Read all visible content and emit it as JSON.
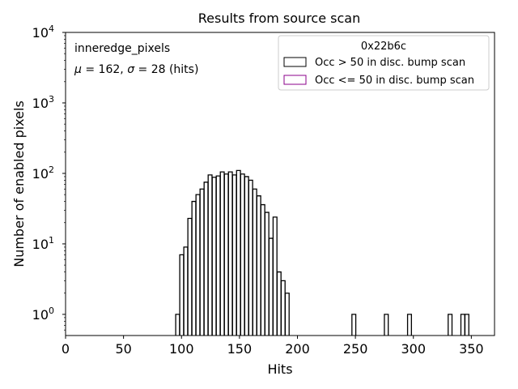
{
  "chart_data": {
    "type": "histogram",
    "title": "Results from source scan",
    "xlabel": "Hits",
    "ylabel": "Number of enabled pixels",
    "xlim": [
      0,
      370
    ],
    "ylim_exp": [
      -0.3,
      4
    ],
    "yscale": "log",
    "xticks": [
      "0",
      "50",
      "100",
      "150",
      "200",
      "250",
      "300",
      "350"
    ],
    "xtick_values": [
      0,
      50,
      100,
      150,
      200,
      250,
      300,
      350
    ],
    "ytick_mantissa": "10",
    "ytick_exponents": [
      "0",
      "1",
      "2",
      "3",
      "4"
    ],
    "annotation_name": "inneredge_pixels",
    "annotation_stats": "= 162,",
    "annotation_stats2": "= 28 (hits)",
    "mu_symbol": "μ",
    "sigma_symbol": "σ",
    "legend": {
      "title": "0x22b6c",
      "placement": "top-right",
      "entries": [
        {
          "label": "Occ > 50 in disc. bump scan",
          "color": "#000000"
        },
        {
          "label": "Occ <= 50 in disc. bump scan",
          "color": "#8b008b"
        }
      ]
    },
    "series": [
      {
        "name": "Occ > 50 in disc. bump scan",
        "color": "#000000",
        "bin_width": 3.33,
        "bins": [
          [
            95,
            1
          ],
          [
            98.5,
            7
          ],
          [
            102,
            9
          ],
          [
            105.5,
            23
          ],
          [
            109,
            40
          ],
          [
            112.5,
            50
          ],
          [
            116,
            60
          ],
          [
            119.5,
            75
          ],
          [
            123,
            95
          ],
          [
            126.5,
            88
          ],
          [
            130,
            92
          ],
          [
            133.5,
            105
          ],
          [
            137,
            98
          ],
          [
            140.5,
            105
          ],
          [
            144,
            95
          ],
          [
            147.5,
            110
          ],
          [
            151,
            98
          ],
          [
            154.5,
            90
          ],
          [
            158,
            80
          ],
          [
            161.5,
            60
          ],
          [
            165,
            48
          ],
          [
            168.5,
            36
          ],
          [
            172,
            28
          ],
          [
            175.5,
            12
          ],
          [
            179,
            24
          ],
          [
            182.5,
            4
          ],
          [
            186,
            3
          ],
          [
            189.5,
            2
          ],
          [
            247,
            1
          ],
          [
            275,
            1
          ],
          [
            295,
            1
          ],
          [
            330,
            1
          ],
          [
            341,
            1
          ],
          [
            344.5,
            1
          ]
        ]
      }
    ]
  }
}
